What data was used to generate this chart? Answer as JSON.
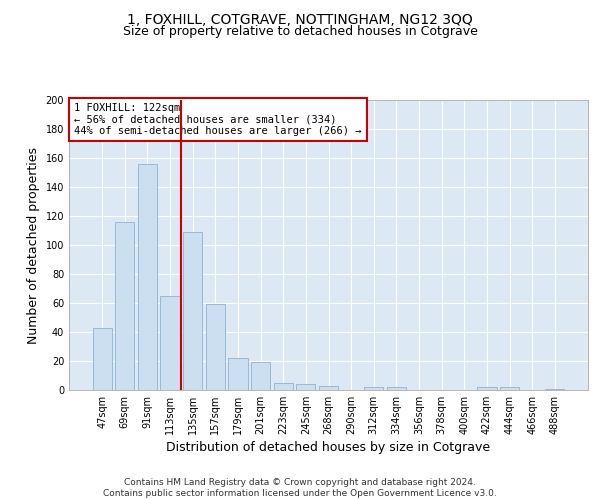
{
  "title": "1, FOXHILL, COTGRAVE, NOTTINGHAM, NG12 3QQ",
  "subtitle": "Size of property relative to detached houses in Cotgrave",
  "xlabel": "Distribution of detached houses by size in Cotgrave",
  "ylabel": "Number of detached properties",
  "bar_color": "#ccdff0",
  "bar_edge_color": "#8ab4d4",
  "bg_color": "#dce9f5",
  "grid_color": "#ffffff",
  "vline_color": "#cc0000",
  "vline_index": 3.5,
  "annotation_text": "1 FOXHILL: 122sqm\n← 56% of detached houses are smaller (334)\n44% of semi-detached houses are larger (266) →",
  "annotation_box_color": "#ffffff",
  "annotation_box_edge": "#cc0000",
  "categories": [
    "47sqm",
    "69sqm",
    "91sqm",
    "113sqm",
    "135sqm",
    "157sqm",
    "179sqm",
    "201sqm",
    "223sqm",
    "245sqm",
    "268sqm",
    "290sqm",
    "312sqm",
    "334sqm",
    "356sqm",
    "378sqm",
    "400sqm",
    "422sqm",
    "444sqm",
    "466sqm",
    "488sqm"
  ],
  "values": [
    43,
    116,
    156,
    65,
    109,
    59,
    22,
    19,
    5,
    4,
    3,
    0,
    2,
    2,
    0,
    0,
    0,
    2,
    2,
    0,
    1
  ],
  "ylim": [
    0,
    200
  ],
  "yticks": [
    0,
    20,
    40,
    60,
    80,
    100,
    120,
    140,
    160,
    180,
    200
  ],
  "footer_text": "Contains HM Land Registry data © Crown copyright and database right 2024.\nContains public sector information licensed under the Open Government Licence v3.0.",
  "title_fontsize": 10,
  "subtitle_fontsize": 9,
  "axis_label_fontsize": 9,
  "tick_fontsize": 7,
  "footer_fontsize": 6.5,
  "annot_fontsize": 7.5
}
